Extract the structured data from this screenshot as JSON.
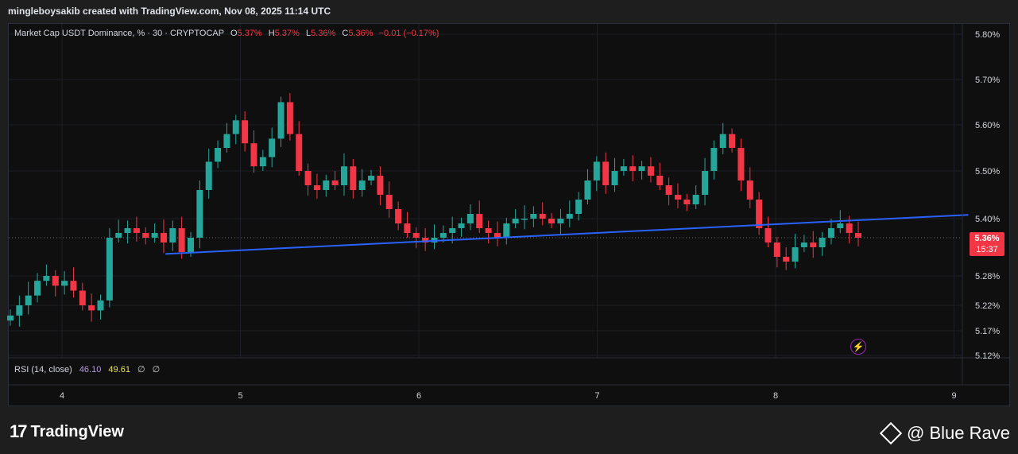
{
  "attribution": "mingleboysakib created with TradingView.com, Nov 08, 2025 11:14 UTC",
  "legend": {
    "symbol": "Market Cap USDT Dominance, % · 30 · CRYPTOCAP",
    "o_label": "O",
    "o_value": "5.37%",
    "h_label": "H",
    "h_value": "5.37%",
    "l_label": "L",
    "l_value": "5.36%",
    "c_label": "C",
    "c_value": "5.36%",
    "change": "−0.01 (−0.17%)"
  },
  "rsi": {
    "label": "RSI (14, close)",
    "value1": "46.10",
    "value2": "49.61",
    "z1": "∅",
    "z2": "∅"
  },
  "price_tag": {
    "price": "5.36%",
    "countdown": "15:37"
  },
  "branding": {
    "logo_mark": "17",
    "logo_text": "TradingView",
    "watermark": "@ Blue Rave"
  },
  "icons": {
    "alert": "lightning-icon",
    "logo": "tradingview-logo-icon",
    "watermark": "binance-diamond-icon"
  },
  "colors": {
    "up": "#26a69a",
    "down": "#f23645",
    "trendline": "#2962ff",
    "background": "#0f0f0f"
  },
  "chart_data": {
    "type": "candlestick",
    "unit": "%",
    "y_ticks": [
      "5.80%",
      "5.70%",
      "5.60%",
      "5.50%",
      "5.40%",
      "5.28%",
      "5.22%",
      "5.17%",
      "5.12%"
    ],
    "x_ticks": [
      "4",
      "5",
      "6",
      "7",
      "8",
      "9"
    ],
    "last_price": 5.36,
    "trendline": {
      "start": [
        4.58,
        5.326
      ],
      "end": [
        9.08,
        5.408
      ]
    },
    "closes": [
      5.2,
      5.22,
      5.24,
      5.27,
      5.28,
      5.26,
      5.27,
      5.25,
      5.22,
      5.21,
      5.23,
      5.36,
      5.37,
      5.38,
      5.37,
      5.36,
      5.37,
      5.35,
      5.38,
      5.33,
      5.36,
      5.46,
      5.52,
      5.55,
      5.58,
      5.61,
      5.56,
      5.51,
      5.53,
      5.57,
      5.65,
      5.58,
      5.5,
      5.47,
      5.46,
      5.48,
      5.47,
      5.51,
      5.46,
      5.48,
      5.49,
      5.45,
      5.42,
      5.39,
      5.37,
      5.36,
      5.35,
      5.36,
      5.37,
      5.38,
      5.39,
      5.41,
      5.38,
      5.37,
      5.36,
      5.39,
      5.4,
      5.4,
      5.41,
      5.4,
      5.39,
      5.4,
      5.41,
      5.44,
      5.48,
      5.52,
      5.47,
      5.5,
      5.51,
      5.5,
      5.51,
      5.49,
      5.47,
      5.45,
      5.44,
      5.43,
      5.45,
      5.5,
      5.55,
      5.58,
      5.55,
      5.48,
      5.44,
      5.38,
      5.35,
      5.32,
      5.31,
      5.34,
      5.35,
      5.34,
      5.36,
      5.38,
      5.39,
      5.37,
      5.36
    ]
  }
}
